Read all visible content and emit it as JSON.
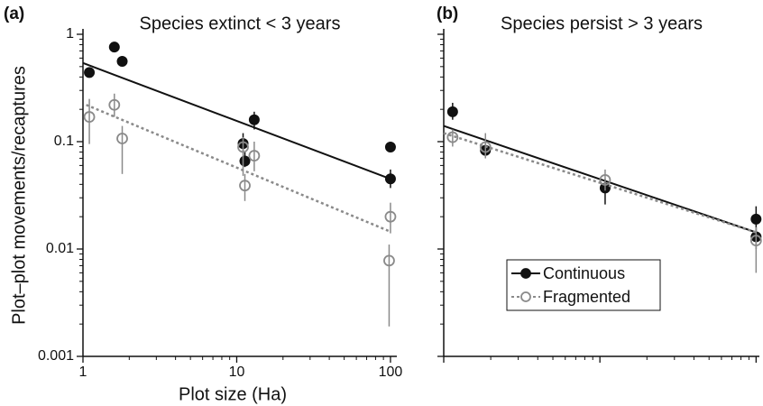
{
  "chart_data": [
    {
      "type": "scatter",
      "label": "(a)",
      "title": "Species extinct < 3 years",
      "ylabel": "Plot–plot movements/recaptures",
      "xlabel": "Plot size (Ha)",
      "xlog": true,
      "ylog": true,
      "xlim": [
        1,
        110
      ],
      "ylim": [
        0.001,
        1
      ],
      "xticks": [
        1,
        10,
        100
      ],
      "yticks": [
        0.001,
        0.01,
        0.1,
        1
      ],
      "tick_labels": true,
      "minor_ticks": true,
      "series": [
        {
          "color": "#111111",
          "marker": "filled",
          "line": "solid",
          "x": [
            1.1,
            1.6,
            1.8,
            11,
            11.3,
            13,
            100,
            100
          ],
          "values": [
            0.44,
            0.76,
            0.56,
            0.096,
            0.066,
            0.16,
            0.089,
            0.045
          ],
          "err_low": [
            null,
            null,
            null,
            0.08,
            0.058,
            0.13,
            null,
            0.037
          ],
          "err_high": [
            null,
            null,
            null,
            0.12,
            0.08,
            0.19,
            null,
            0.055
          ],
          "fit": {
            "x": [
              1,
              100
            ],
            "values": [
              0.54,
              0.045
            ]
          }
        },
        {
          "color": "#8a8a8a",
          "marker": "open",
          "line": "dotted",
          "x": [
            1.1,
            1.6,
            1.8,
            11,
            11.3,
            13,
            100,
            98
          ],
          "values": [
            0.17,
            0.22,
            0.107,
            0.089,
            0.039,
            0.074,
            0.02,
            0.0078
          ],
          "err_low": [
            0.095,
            0.17,
            0.05,
            0.048,
            0.028,
            0.053,
            0.014,
            0.0019
          ],
          "err_high": [
            0.25,
            0.28,
            0.14,
            0.11,
            0.05,
            0.1,
            0.027,
            0.011
          ],
          "fit": {
            "x": [
              1.05,
              100
            ],
            "values": [
              0.22,
              0.0145
            ]
          }
        }
      ]
    },
    {
      "type": "scatter",
      "label": "(b)",
      "title": "Species persist > 3 years",
      "xlog": true,
      "ylog": true,
      "xlim": [
        1,
        105
      ],
      "ylim": [
        0.001,
        1
      ],
      "xticks": [
        1,
        10,
        100
      ],
      "yticks": [
        0.001,
        0.01,
        0.1,
        1
      ],
      "tick_labels": false,
      "minor_ticks": true,
      "legend": "lower center",
      "series": [
        {
          "name": "Continuous",
          "color": "#111111",
          "marker": "filled",
          "line": "solid",
          "x": [
            1.14,
            1.85,
            10.8,
            100,
            100
          ],
          "values": [
            0.19,
            0.083,
            0.037,
            0.019,
            0.013
          ],
          "err_low": [
            0.16,
            0.07,
            0.026,
            0.014,
            0.01
          ],
          "err_high": [
            0.23,
            0.1,
            0.045,
            0.025,
            0.016
          ],
          "fit": {
            "x": [
              1,
              100
            ],
            "values": [
              0.14,
              0.0143
            ]
          }
        },
        {
          "name": "Fragmented",
          "color": "#8a8a8a",
          "marker": "open",
          "line": "dotted",
          "x": [
            1.14,
            1.85,
            10.8,
            100
          ],
          "values": [
            0.11,
            0.089,
            0.044,
            0.012
          ],
          "err_low": [
            0.09,
            0.07,
            0.035,
            0.006
          ],
          "err_high": [
            0.13,
            0.12,
            0.055,
            0.016
          ],
          "fit": {
            "x": [
              1,
              100
            ],
            "values": [
              0.12,
              0.0143
            ]
          }
        }
      ]
    }
  ]
}
